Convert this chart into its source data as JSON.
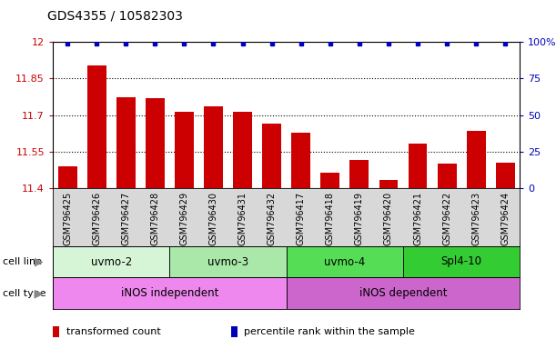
{
  "title": "GDS4355 / 10582303",
  "samples": [
    "GSM796425",
    "GSM796426",
    "GSM796427",
    "GSM796428",
    "GSM796429",
    "GSM796430",
    "GSM796431",
    "GSM796432",
    "GSM796417",
    "GSM796418",
    "GSM796419",
    "GSM796420",
    "GSM796421",
    "GSM796422",
    "GSM796423",
    "GSM796424"
  ],
  "bar_values": [
    11.49,
    11.905,
    11.775,
    11.77,
    11.715,
    11.735,
    11.715,
    11.665,
    11.63,
    11.465,
    11.515,
    11.435,
    11.585,
    11.5,
    11.635,
    11.505
  ],
  "bar_color": "#cc0000",
  "dot_color": "#0000bb",
  "ylim_left": [
    11.4,
    12.0
  ],
  "ylim_right": [
    0,
    100
  ],
  "yticks_left": [
    11.4,
    11.55,
    11.7,
    11.85,
    12.0
  ],
  "ytick_labels_left": [
    "11.4",
    "11.55",
    "11.7",
    "11.85",
    "12"
  ],
  "yticks_right": [
    0,
    25,
    50,
    75,
    100
  ],
  "ytick_labels_right": [
    "0",
    "25",
    "50",
    "75",
    "100%"
  ],
  "cell_lines": [
    {
      "label": "uvmo-2",
      "start": 0,
      "end": 4,
      "color": "#d6f5d6"
    },
    {
      "label": "uvmo-3",
      "start": 4,
      "end": 8,
      "color": "#aae8aa"
    },
    {
      "label": "uvmo-4",
      "start": 8,
      "end": 12,
      "color": "#55dd55"
    },
    {
      "label": "Spl4-10",
      "start": 12,
      "end": 16,
      "color": "#33cc33"
    }
  ],
  "cell_types": [
    {
      "label": "iNOS independent",
      "start": 0,
      "end": 8,
      "color": "#ee88ee"
    },
    {
      "label": "iNOS dependent",
      "start": 8,
      "end": 16,
      "color": "#cc66cc"
    }
  ],
  "legend_items": [
    {
      "color": "#cc0000",
      "label": "transformed count"
    },
    {
      "color": "#0000bb",
      "label": "percentile rank within the sample"
    }
  ],
  "bar_width": 0.65,
  "title_fontsize": 10,
  "tick_fontsize": 8,
  "sample_fontsize": 7,
  "cell_fontsize": 8.5,
  "legend_fontsize": 8
}
